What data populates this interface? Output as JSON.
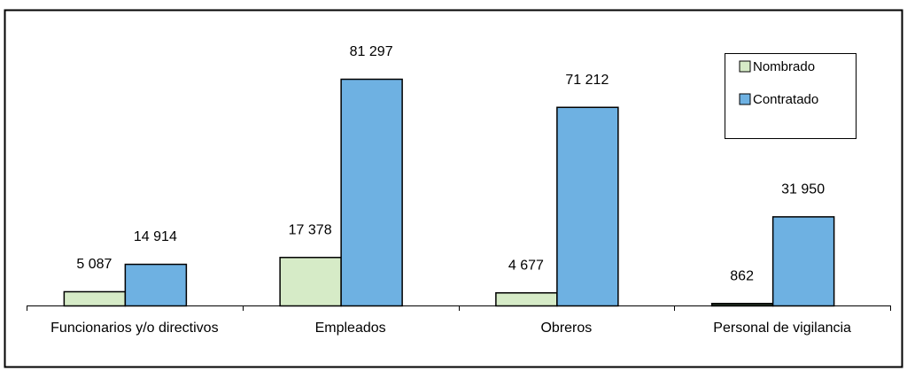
{
  "chart_data": {
    "type": "bar",
    "title": "",
    "xlabel": "",
    "ylabel": "",
    "ylim": [
      0,
      90000
    ],
    "grid": false,
    "legend_position": "top-right",
    "categories": [
      "Funcionarios y/o directivos",
      "Empleados",
      "Obreros",
      "Personal de vigilancia"
    ],
    "series": [
      {
        "name": "Nombrado",
        "values": [
          5087,
          17378,
          4677,
          862
        ],
        "labels": [
          "5 087",
          "17 378",
          "4 677",
          "862"
        ],
        "color": "#d6ebc7"
      },
      {
        "name": "Contratado",
        "values": [
          14914,
          81297,
          71212,
          31950
        ],
        "labels": [
          "14 914",
          "81 297",
          "71 212",
          "31 950"
        ],
        "color": "#6eb1e2"
      }
    ]
  }
}
